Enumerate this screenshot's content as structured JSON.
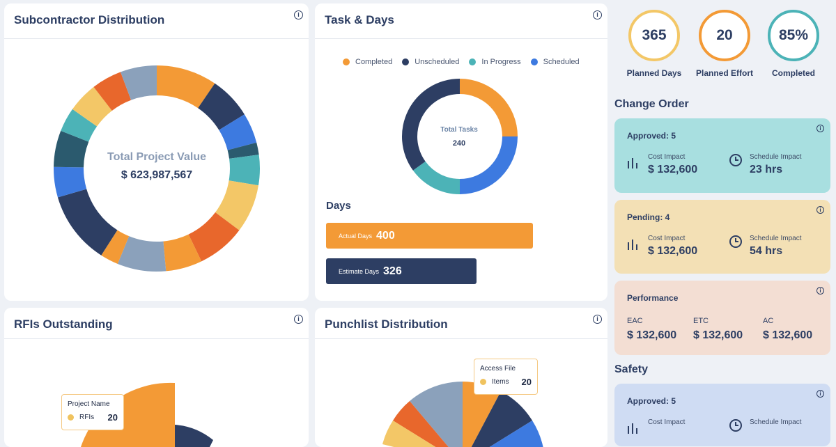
{
  "subcontractor": {
    "title": "Subcontractor Distribution",
    "center_title": "Total Project Value",
    "center_value": "$ 623,987,567"
  },
  "tasks": {
    "title": "Task & Days",
    "legend": [
      {
        "label": "Completed",
        "color": "#f39a36"
      },
      {
        "label": "Unscheduled",
        "color": "#2d3e63"
      },
      {
        "label": "In Progress",
        "color": "#4cb3b7"
      },
      {
        "label": "Scheduled",
        "color": "#3d7ae0"
      }
    ],
    "center_title": "Total Tasks",
    "center_value": "240",
    "days_title": "Days",
    "actual_label": "Actual Days",
    "actual_value": "400",
    "estimate_label": "Estimate Days",
    "estimate_value": "326"
  },
  "rfis": {
    "title": "RFIs Outstanding",
    "tooltip_title": "Project Name",
    "tooltip_label": "RFIs",
    "tooltip_value": "20"
  },
  "punchlist": {
    "title": "Punchlist Distribution",
    "tooltip_title": "Access File",
    "tooltip_label": "Items",
    "tooltip_value": "20"
  },
  "kpis": [
    {
      "value": "365",
      "label": "Planned Days",
      "color": "#f3c767"
    },
    {
      "value": "20",
      "label": "Planned Effort",
      "color": "#f39a36"
    },
    {
      "value": "85%",
      "label": "Completed",
      "color": "#4cb3b7"
    }
  ],
  "change_order": {
    "title": "Change Order",
    "approved": {
      "head": "Approved: 5",
      "cost_label": "Cost Impact",
      "cost_value": "$ 132,600",
      "sched_label": "Schedule Impact",
      "sched_value": "23 hrs",
      "color": "#a8dfe0"
    },
    "pending": {
      "head": "Pending: 4",
      "cost_label": "Cost Impact",
      "cost_value": "$ 132,600",
      "sched_label": "Schedule Impact",
      "sched_value": "54 hrs",
      "color": "#f3e0b5"
    },
    "performance": {
      "head": "Performance",
      "eac_label": "EAC",
      "eac_value": "$ 132,600",
      "etc_label": "ETC",
      "etc_value": "$ 132,600",
      "ac_label": "AC",
      "ac_value": "$ 132,600",
      "color": "#f3ded3"
    }
  },
  "safety": {
    "title": "Safety",
    "approved": {
      "head": "Approved: 5",
      "cost_label": "Cost Impact",
      "sched_label": "Schedule Impact",
      "color": "#cfdcf3"
    }
  },
  "info_glyph": "i",
  "chart_data": [
    {
      "type": "pie",
      "name": "subcontractor-donut",
      "values": [
        10,
        7,
        5,
        2,
        5,
        8,
        8,
        6,
        8,
        3,
        12,
        5,
        6,
        4,
        5,
        5,
        6
      ],
      "colors": [
        "#f39a36",
        "#2d3e63",
        "#3d7ae0",
        "#2b5a6e",
        "#4cb3b7",
        "#f3c767",
        "#e8672c",
        "#f39a36",
        "#8ba1bb",
        "#f39a36",
        "#2d3e63",
        "#3d7ae0",
        "#2b5a6e",
        "#4cb3b7",
        "#f3c767",
        "#e8672c",
        "#8ba1bb"
      ]
    },
    {
      "type": "pie",
      "name": "tasks-donut",
      "values": [
        25,
        25,
        15,
        35
      ],
      "colors": [
        "#f39a36",
        "#3d7ae0",
        "#4cb3b7",
        "#2d3e63"
      ]
    }
  ]
}
